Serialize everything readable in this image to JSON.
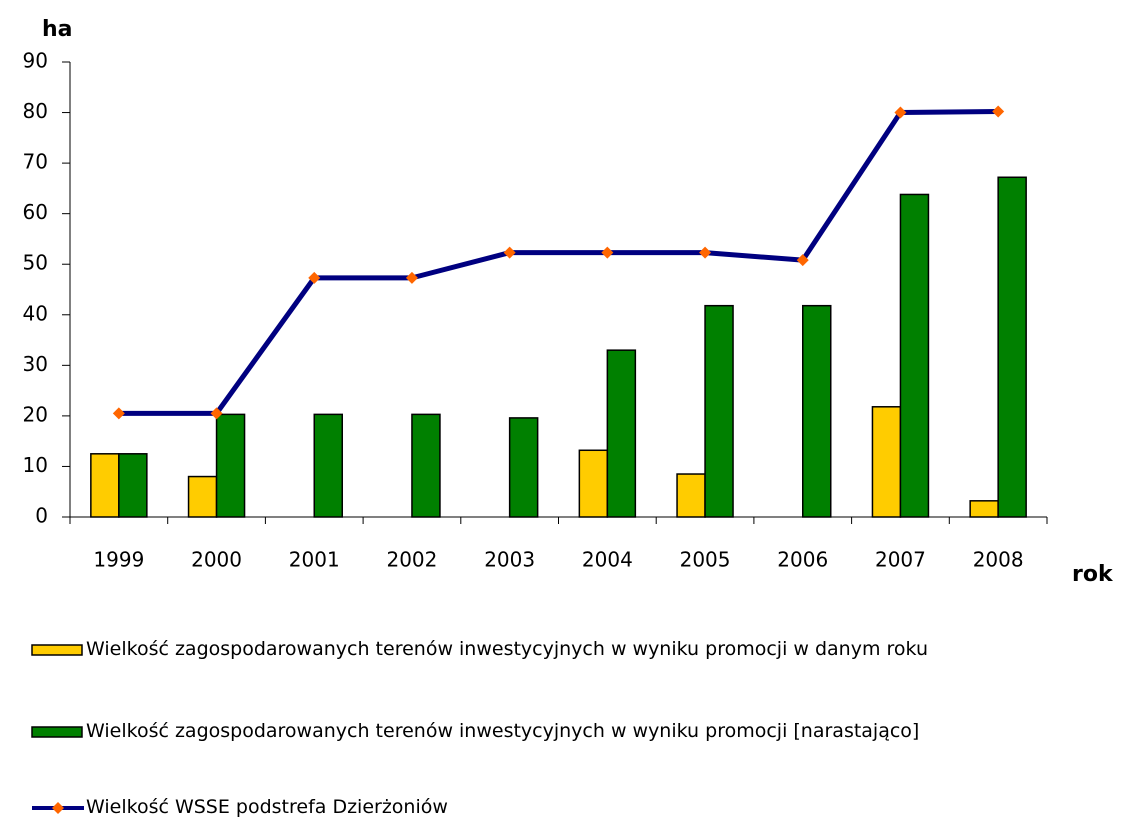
{
  "chart_data": {
    "type": "bar",
    "y_label": "ha",
    "x_label": "rok",
    "categories": [
      "1999",
      "2000",
      "2001",
      "2002",
      "2003",
      "2004",
      "2005",
      "2006",
      "2007",
      "2008"
    ],
    "series": [
      {
        "name": "Wielkość zagospodarowanych terenów inwestycyjnych w wyniku promocji w danym roku",
        "color": "#ffcc00",
        "values": [
          12.5,
          8,
          0,
          0,
          0,
          13.2,
          8.5,
          0,
          21.8,
          3.2
        ]
      },
      {
        "name": "Wielkość zagospodarowanych terenów inwestycyjnych w wyniku promocji [narastająco]",
        "color": "#008000",
        "values": [
          12.5,
          20.3,
          20.3,
          20.3,
          19.6,
          33,
          41.8,
          41.8,
          63.8,
          67.2
        ]
      },
      {
        "name": "Wielkość WSSE podstrefa Dzierżoniów",
        "type": "line",
        "color": "#000080",
        "marker_color": "#ff6600",
        "values": [
          20.5,
          20.5,
          47.3,
          47.3,
          52.3,
          52.3,
          52.3,
          50.8,
          80,
          80.2
        ]
      }
    ],
    "ylim": [
      0,
      90
    ],
    "yticks": [
      0,
      10,
      20,
      30,
      40,
      50,
      60,
      70,
      80,
      90
    ],
    "grid": false
  }
}
